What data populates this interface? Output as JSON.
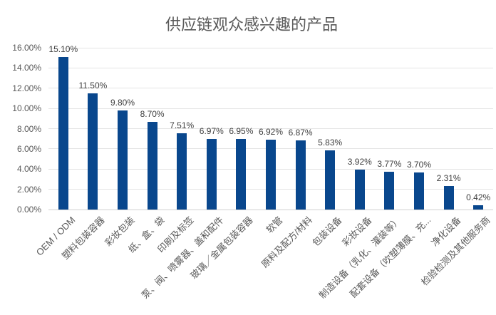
{
  "chart_data": {
    "type": "bar",
    "title": "供应链观众感兴趣的产品",
    "categories": [
      "OEM / ODM",
      "塑料包装容器",
      "彩妆包装",
      "纸、盒、袋",
      "印刷及标签",
      "泵、阀、喷雾器、盖和配件",
      "玻璃／金属包装容器",
      "软管",
      "原料及配方/材料",
      "包装设备",
      "彩妆设备",
      "制造设备（乳化、灌装等）",
      "配套设备（吹塑薄膜、充...",
      "净化设备",
      "检验检测及其他服务商"
    ],
    "values": [
      15.1,
      11.5,
      9.8,
      8.7,
      7.51,
      6.97,
      6.95,
      6.92,
      6.87,
      5.83,
      3.92,
      3.77,
      3.7,
      2.31,
      0.42
    ],
    "value_labels": [
      "15.10%",
      "11.50%",
      "9.80%",
      "8.70%",
      "7.51%",
      "6.97%",
      "6.95%",
      "6.92%",
      "6.87%",
      "5.83%",
      "3.92%",
      "3.77%",
      "3.70%",
      "2.31%",
      "0.42%"
    ],
    "ytick_labels": [
      "0.00%",
      "2.00%",
      "4.00%",
      "6.00%",
      "8.00%",
      "10.00%",
      "12.00%",
      "14.00%",
      "16.00%"
    ],
    "ylim": [
      0,
      16
    ],
    "ytick_step": 2,
    "grid": true,
    "legend": false,
    "xlabel": "",
    "ylabel": "",
    "colors": {
      "bar": "#09478D",
      "title": "#595959",
      "axis_tick_label": "#595959",
      "value_label": "#404040",
      "category_label": "#595959",
      "gridline": "#E4E4E4",
      "axis_line": "#CFCFCF"
    }
  }
}
